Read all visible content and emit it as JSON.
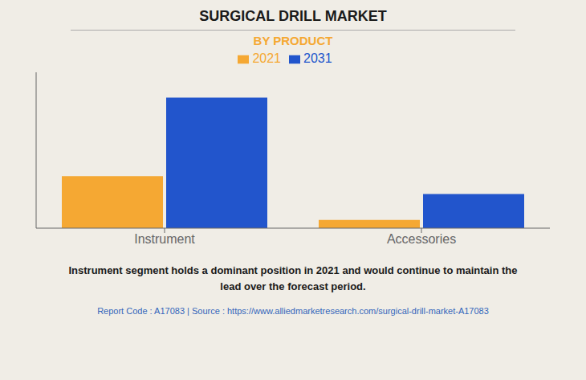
{
  "chart_data": {
    "type": "bar",
    "title": "SURGICAL DRILL MARKET",
    "subtitle": "BY PRODUCT",
    "categories": [
      "Instrument",
      "Accessories"
    ],
    "series": [
      {
        "name": "2021",
        "color": "#F5A833",
        "values": [
          3.5,
          0.55
        ]
      },
      {
        "name": "2031",
        "color": "#2255CC",
        "values": [
          8.8,
          2.3
        ]
      }
    ],
    "ylim": [
      0,
      10.5
    ],
    "grid": false,
    "legend": "top",
    "tick_labels": "x",
    "annotations": [
      "Instrument segment holds a dominant position in 2021 and would continue to maintain the",
      "lead over the forecast period."
    ],
    "footer": "Report Code : A17083  |  Source : https://www.alliedmarketresearch.com/surgical-drill-market-A17083"
  }
}
